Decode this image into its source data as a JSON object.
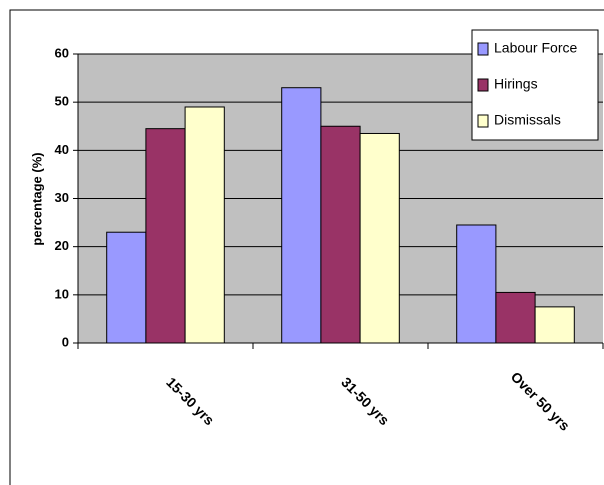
{
  "chart_data": {
    "type": "bar",
    "y_label": "percentage (%)",
    "categories": [
      "15-30 yrs",
      "31-50 yrs",
      "Over 50 yrs"
    ],
    "series": [
      {
        "name": "Labour Force",
        "color": "#9999ff",
        "values": [
          23,
          53,
          24.5
        ]
      },
      {
        "name": "Hirings",
        "color": "#993366",
        "values": [
          44.5,
          45,
          10.5
        ]
      },
      {
        "name": "Dismissals",
        "color": "#ffffcc",
        "values": [
          49,
          43.5,
          7.5
        ]
      }
    ],
    "ylim": [
      0,
      60
    ],
    "yticks": [
      0,
      10,
      20,
      30,
      40,
      50,
      60
    ],
    "grid": true,
    "legend": "top-right",
    "plot_background": "#c0c0c0"
  }
}
